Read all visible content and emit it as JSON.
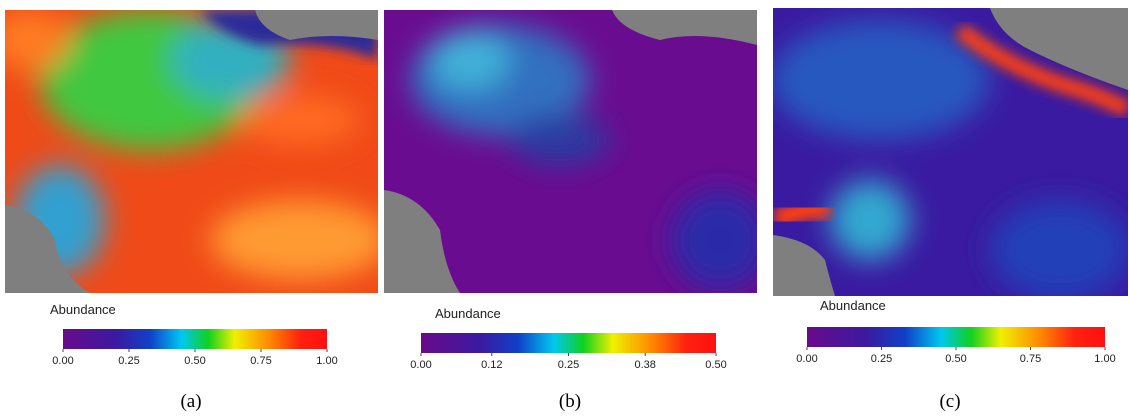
{
  "panels": [
    {
      "caption": "(a)",
      "colorbar_title": "Abundance",
      "xlim": [
        0,
        1
      ],
      "ticks": [
        {
          "value": 0,
          "label": "0.00"
        },
        {
          "value": 0.25,
          "label": "0.25"
        },
        {
          "value": 0.5,
          "label": "0.50"
        },
        {
          "value": 0.75,
          "label": "0.75"
        },
        {
          "value": 1,
          "label": "1.00"
        }
      ]
    },
    {
      "caption": "(b)",
      "colorbar_title": "Abundance",
      "xlim": [
        0,
        0.5
      ],
      "ticks": [
        {
          "value": 0,
          "label": "0.00"
        },
        {
          "value": 0.12,
          "label": "0.12"
        },
        {
          "value": 0.25,
          "label": "0.25"
        },
        {
          "value": 0.38,
          "label": "0.38"
        },
        {
          "value": 0.5,
          "label": "0.50"
        }
      ]
    },
    {
      "caption": "(c)",
      "colorbar_title": "Abundance",
      "xlim": [
        0,
        1
      ],
      "ticks": [
        {
          "value": 0,
          "label": "0.00"
        },
        {
          "value": 0.25,
          "label": "0.25"
        },
        {
          "value": 0.5,
          "label": "0.50"
        },
        {
          "value": 0.75,
          "label": "0.75"
        },
        {
          "value": 1,
          "label": "1.00"
        }
      ]
    }
  ]
}
